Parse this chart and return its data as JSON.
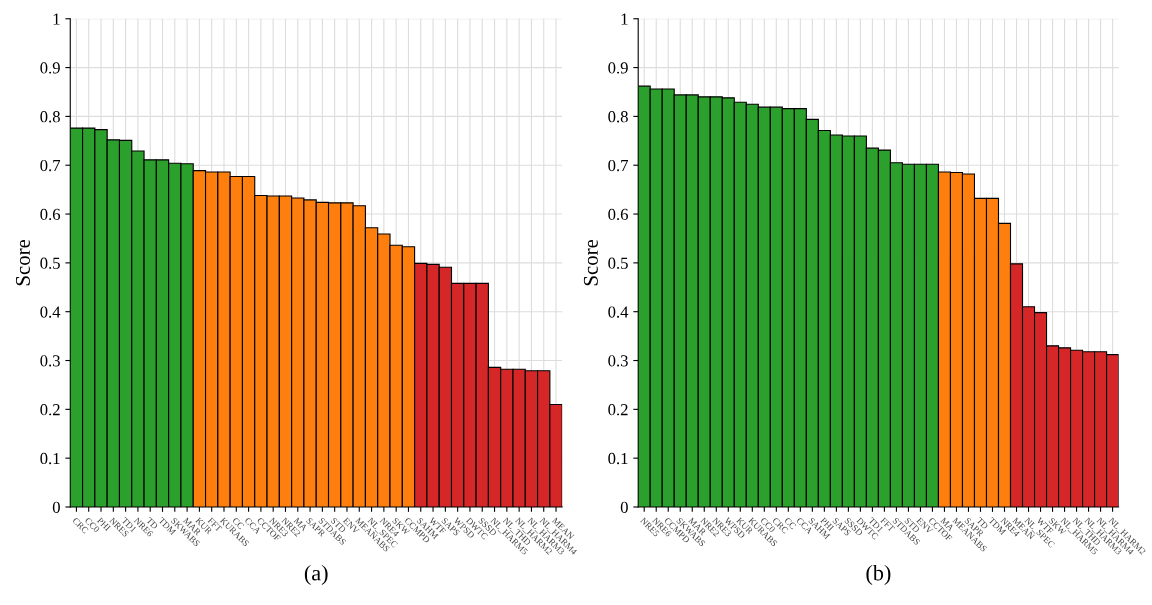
{
  "chart_data": [
    {
      "type": "bar",
      "xlabel": "(a)",
      "ylabel": "Score",
      "ylim": [
        0,
        1
      ],
      "yticks": [
        0,
        0.1,
        0.2,
        0.3,
        0.4,
        0.5,
        0.6,
        0.7,
        0.8,
        0.9,
        1
      ],
      "grid": true,
      "legend": false,
      "categories": [
        "CRC",
        "CC0",
        "PHI",
        "NRES",
        "TD1",
        "NRE6",
        "TD",
        "TDM",
        "SKWABS",
        "MAR",
        "KUR",
        "FFT",
        "KURABS",
        "CC",
        "CCA",
        "CCTOF",
        "NRE3",
        "NRE2",
        "MA",
        "SAPR",
        "STDABS",
        "STD",
        "ENV",
        "MEANABS",
        "NL_SPEC",
        "NRE4",
        "SKW",
        "CCMPD",
        "SAHM",
        "WTF",
        "SAPS",
        "WPSD",
        "DWTC",
        "SSSD",
        "NL_HARM5",
        "NL_THD",
        "NL_HARM2",
        "NL_HARM3",
        "NL_HARM4",
        "MEAN"
      ],
      "values": [
        0.776,
        0.776,
        0.773,
        0.752,
        0.751,
        0.729,
        0.711,
        0.711,
        0.704,
        0.703,
        0.689,
        0.686,
        0.686,
        0.677,
        0.677,
        0.638,
        0.637,
        0.637,
        0.633,
        0.629,
        0.624,
        0.623,
        0.623,
        0.617,
        0.572,
        0.559,
        0.536,
        0.533,
        0.499,
        0.497,
        0.491,
        0.458,
        0.458,
        0.458,
        0.286,
        0.282,
        0.282,
        0.279,
        0.279,
        0.21
      ],
      "colors": [
        "#2ca02c",
        "#2ca02c",
        "#2ca02c",
        "#2ca02c",
        "#2ca02c",
        "#2ca02c",
        "#2ca02c",
        "#2ca02c",
        "#2ca02c",
        "#2ca02c",
        "#ff7f0e",
        "#ff7f0e",
        "#ff7f0e",
        "#ff7f0e",
        "#ff7f0e",
        "#ff7f0e",
        "#ff7f0e",
        "#ff7f0e",
        "#ff7f0e",
        "#ff7f0e",
        "#ff7f0e",
        "#ff7f0e",
        "#ff7f0e",
        "#ff7f0e",
        "#ff7f0e",
        "#ff7f0e",
        "#ff7f0e",
        "#ff7f0e",
        "#d62728",
        "#d62728",
        "#d62728",
        "#d62728",
        "#d62728",
        "#d62728",
        "#d62728",
        "#d62728",
        "#d62728",
        "#d62728",
        "#d62728",
        "#d62728"
      ]
    },
    {
      "type": "bar",
      "xlabel": "(b)",
      "ylabel": "Score",
      "ylim": [
        0,
        1
      ],
      "yticks": [
        0,
        0.1,
        0.2,
        0.3,
        0.4,
        0.5,
        0.6,
        0.7,
        0.8,
        0.9,
        1
      ],
      "grid": true,
      "legend": false,
      "categories": [
        "NRE5",
        "NRE6",
        "CCMPD",
        "SKWABS",
        "MAR",
        "NRE2",
        "NRE3",
        "WPSD",
        "KUR",
        "KURABS",
        "CC0",
        "CRC",
        "CC",
        "CCA",
        "SAHM",
        "PHI",
        "SAPS",
        "SSSD",
        "DWTC",
        "TD1",
        "FFT",
        "STDABS",
        "STD",
        "ENV",
        "CCTOF",
        "MA",
        "MEANABS",
        "SAPR",
        "TD",
        "TDM",
        "NRE4",
        "MEAN",
        "NL_SPEC",
        "WTF",
        "SKW",
        "NL_HARM5",
        "NL_THD",
        "NL_HARM3",
        "NL_HARM4",
        "NL_HARM2"
      ],
      "values": [
        0.862,
        0.856,
        0.856,
        0.844,
        0.844,
        0.84,
        0.84,
        0.838,
        0.829,
        0.825,
        0.819,
        0.819,
        0.816,
        0.816,
        0.794,
        0.771,
        0.762,
        0.76,
        0.76,
        0.735,
        0.731,
        0.705,
        0.702,
        0.702,
        0.702,
        0.686,
        0.685,
        0.682,
        0.632,
        0.632,
        0.581,
        0.498,
        0.41,
        0.398,
        0.33,
        0.326,
        0.321,
        0.318,
        0.318,
        0.312
      ],
      "colors": [
        "#2ca02c",
        "#2ca02c",
        "#2ca02c",
        "#2ca02c",
        "#2ca02c",
        "#2ca02c",
        "#2ca02c",
        "#2ca02c",
        "#2ca02c",
        "#2ca02c",
        "#2ca02c",
        "#2ca02c",
        "#2ca02c",
        "#2ca02c",
        "#2ca02c",
        "#2ca02c",
        "#2ca02c",
        "#2ca02c",
        "#2ca02c",
        "#2ca02c",
        "#2ca02c",
        "#2ca02c",
        "#2ca02c",
        "#2ca02c",
        "#2ca02c",
        "#ff7f0e",
        "#ff7f0e",
        "#ff7f0e",
        "#ff7f0e",
        "#ff7f0e",
        "#ff7f0e",
        "#d62728",
        "#d62728",
        "#d62728",
        "#d62728",
        "#d62728",
        "#d62728",
        "#d62728",
        "#d62728",
        "#d62728"
      ]
    }
  ]
}
